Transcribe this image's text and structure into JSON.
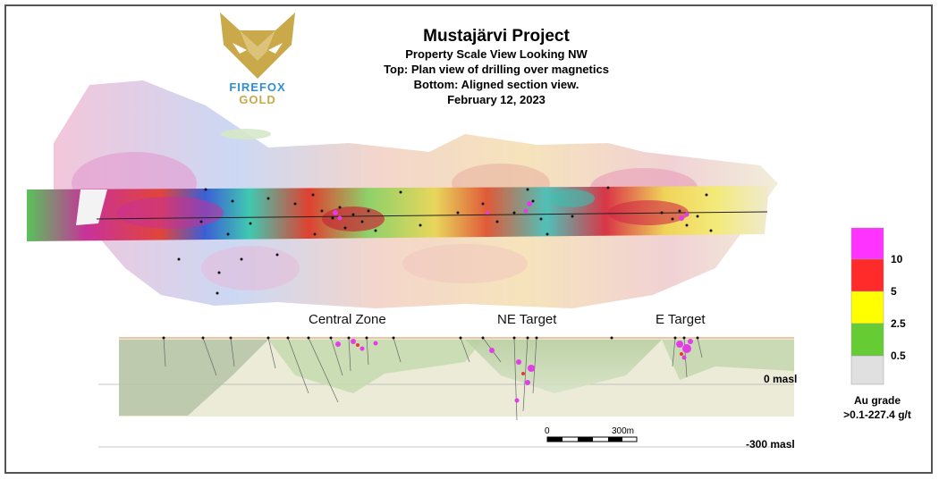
{
  "logo": {
    "word1": "FIREFOX",
    "word2": "GOLD"
  },
  "titles": {
    "main": "Mustajärvi Project",
    "line1": "Property Scale View Looking NW",
    "line2": "Top: Plan view of drilling over magnetics",
    "line3": "Bottom: Aligned section view.",
    "date": "February 12, 2023"
  },
  "section_labels": {
    "central": "Central Zone",
    "ne": "NE Target",
    "e": "E Target"
  },
  "elevations": {
    "zero": "0 masl",
    "minus300": "-300 masl"
  },
  "scale_bar": {
    "start": "0",
    "end": "300m"
  },
  "legend": {
    "title_line1": "Au grade",
    "title_line2": ">0.1-227.4 g/t",
    "classes": [
      {
        "label": "10",
        "color": "#ff33ff"
      },
      {
        "label": "5",
        "color": "#ff2a2a"
      },
      {
        "label": "2.5",
        "color": "#ffff00"
      },
      {
        "label": "0.5",
        "color": "#66cc33"
      },
      {
        "label": "",
        "color": "#e0e0e0"
      }
    ]
  },
  "colors": {
    "mag_high": "#d9304a",
    "mag_mid": "#f2e36a",
    "mag_low": "#3b6fd6",
    "mag_green": "#3fc46a",
    "section_fill": "#c9dbb5",
    "section_bg": "#ecebd8"
  }
}
